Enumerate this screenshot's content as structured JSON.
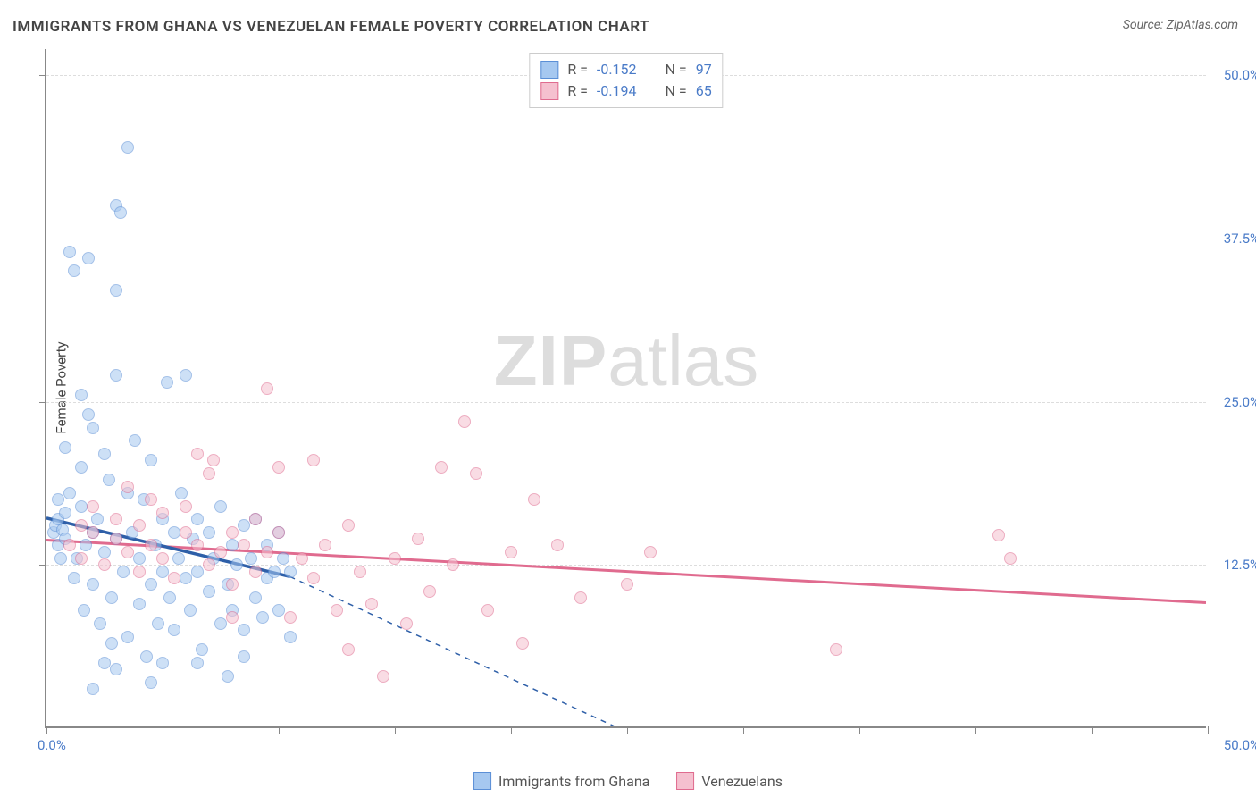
{
  "title": "IMMIGRANTS FROM GHANA VS VENEZUELAN FEMALE POVERTY CORRELATION CHART",
  "source": "Source: ZipAtlas.com",
  "y_axis_title": "Female Poverty",
  "watermark_zip": "ZIP",
  "watermark_atlas": "atlas",
  "chart": {
    "type": "scatter",
    "x_min": 0.0,
    "x_max": 50.0,
    "y_min": 0.0,
    "y_max": 52.0,
    "x_tick_step": 5.0,
    "y_gridlines": [
      12.5,
      25.0,
      37.5,
      50.0
    ],
    "y_tick_labels": [
      "12.5%",
      "25.0%",
      "37.5%",
      "50.0%"
    ],
    "x_label_min": "0.0%",
    "x_label_max": "50.0%",
    "background_color": "#ffffff",
    "grid_color": "#dddddd",
    "axis_color": "#888888",
    "label_color": "#4a7bc8",
    "point_radius": 7,
    "point_opacity": 0.55
  },
  "series": {
    "ghana": {
      "label": "Immigrants from Ghana",
      "fill_color": "#a6c8f0",
      "stroke_color": "#5b8fd6",
      "R": "-0.152",
      "N": "97",
      "trend": {
        "x1": 0,
        "y1": 16.0,
        "x2": 10.5,
        "y2": 11.5,
        "solid": true
      },
      "trend_ext": {
        "x1": 10.5,
        "y1": 11.5,
        "x2": 24.5,
        "y2": 0.0,
        "dashed": true
      },
      "points": [
        [
          0.3,
          15.0
        ],
        [
          0.4,
          15.5
        ],
        [
          0.5,
          14.0
        ],
        [
          0.5,
          16.0
        ],
        [
          0.6,
          13.0
        ],
        [
          0.7,
          15.2
        ],
        [
          0.8,
          14.5
        ],
        [
          0.8,
          16.5
        ],
        [
          1.0,
          36.5
        ],
        [
          1.2,
          35.0
        ],
        [
          1.3,
          13.0
        ],
        [
          1.5,
          17.0
        ],
        [
          1.5,
          20.0
        ],
        [
          1.6,
          9.0
        ],
        [
          1.7,
          14.0
        ],
        [
          1.8,
          24.0
        ],
        [
          2.0,
          23.0
        ],
        [
          2.0,
          11.0
        ],
        [
          2.0,
          15.0
        ],
        [
          2.2,
          16.0
        ],
        [
          2.3,
          8.0
        ],
        [
          2.5,
          21.0
        ],
        [
          2.5,
          13.5
        ],
        [
          2.7,
          19.0
        ],
        [
          2.8,
          10.0
        ],
        [
          3.0,
          27.0
        ],
        [
          3.0,
          14.5
        ],
        [
          3.0,
          40.0
        ],
        [
          3.2,
          39.5
        ],
        [
          3.3,
          12.0
        ],
        [
          3.5,
          7.0
        ],
        [
          3.5,
          18.0
        ],
        [
          3.7,
          15.0
        ],
        [
          3.8,
          22.0
        ],
        [
          3.5,
          44.5
        ],
        [
          4.0,
          9.5
        ],
        [
          4.0,
          13.0
        ],
        [
          4.2,
          17.5
        ],
        [
          4.3,
          5.5
        ],
        [
          4.5,
          11.0
        ],
        [
          4.5,
          20.5
        ],
        [
          4.7,
          14.0
        ],
        [
          4.8,
          8.0
        ],
        [
          5.0,
          16.0
        ],
        [
          5.0,
          12.0
        ],
        [
          5.2,
          26.5
        ],
        [
          5.3,
          10.0
        ],
        [
          5.5,
          15.0
        ],
        [
          5.5,
          7.5
        ],
        [
          5.7,
          13.0
        ],
        [
          5.8,
          18.0
        ],
        [
          6.0,
          11.5
        ],
        [
          6.0,
          27.0
        ],
        [
          6.2,
          9.0
        ],
        [
          6.3,
          14.5
        ],
        [
          6.5,
          16.0
        ],
        [
          6.5,
          12.0
        ],
        [
          6.7,
          6.0
        ],
        [
          7.0,
          15.0
        ],
        [
          7.0,
          10.5
        ],
        [
          7.2,
          13.0
        ],
        [
          7.5,
          8.0
        ],
        [
          7.5,
          17.0
        ],
        [
          7.8,
          11.0
        ],
        [
          8.0,
          14.0
        ],
        [
          8.0,
          9.0
        ],
        [
          8.2,
          12.5
        ],
        [
          8.5,
          15.5
        ],
        [
          8.5,
          7.5
        ],
        [
          8.8,
          13.0
        ],
        [
          9.0,
          10.0
        ],
        [
          9.0,
          16.0
        ],
        [
          9.3,
          8.5
        ],
        [
          9.5,
          14.0
        ],
        [
          9.5,
          11.5
        ],
        [
          9.8,
          12.0
        ],
        [
          10.0,
          9.0
        ],
        [
          10.0,
          15.0
        ],
        [
          10.2,
          13.0
        ],
        [
          10.5,
          7.0
        ],
        [
          10.5,
          12.0
        ],
        [
          3.0,
          33.5
        ],
        [
          1.8,
          36.0
        ],
        [
          4.5,
          3.5
        ],
        [
          3.0,
          4.5
        ],
        [
          2.0,
          3.0
        ],
        [
          2.5,
          5.0
        ],
        [
          6.5,
          5.0
        ],
        [
          7.8,
          4.0
        ],
        [
          8.5,
          5.5
        ],
        [
          0.8,
          21.5
        ],
        [
          1.5,
          25.5
        ],
        [
          1.0,
          18.0
        ],
        [
          0.5,
          17.5
        ],
        [
          1.2,
          11.5
        ],
        [
          2.8,
          6.5
        ],
        [
          5.0,
          5.0
        ]
      ]
    },
    "venezuela": {
      "label": "Venezuelans",
      "fill_color": "#f5c0cf",
      "stroke_color": "#e06b8f",
      "R": "-0.194",
      "N": "65",
      "trend": {
        "x1": 0,
        "y1": 14.3,
        "x2": 50,
        "y2": 9.5,
        "solid": true
      },
      "points": [
        [
          1.0,
          14.0
        ],
        [
          1.5,
          13.0
        ],
        [
          2.0,
          15.0
        ],
        [
          2.5,
          12.5
        ],
        [
          3.0,
          14.5
        ],
        [
          3.0,
          16.0
        ],
        [
          3.5,
          13.5
        ],
        [
          4.0,
          15.5
        ],
        [
          4.0,
          12.0
        ],
        [
          4.5,
          14.0
        ],
        [
          5.0,
          16.5
        ],
        [
          5.0,
          13.0
        ],
        [
          5.5,
          11.5
        ],
        [
          6.0,
          15.0
        ],
        [
          6.0,
          17.0
        ],
        [
          6.5,
          14.0
        ],
        [
          7.0,
          12.5
        ],
        [
          7.0,
          19.5
        ],
        [
          7.2,
          20.5
        ],
        [
          7.5,
          13.5
        ],
        [
          8.0,
          15.0
        ],
        [
          8.0,
          11.0
        ],
        [
          8.5,
          14.0
        ],
        [
          9.0,
          16.0
        ],
        [
          9.0,
          12.0
        ],
        [
          9.5,
          13.5
        ],
        [
          10.0,
          15.0
        ],
        [
          10.0,
          20.0
        ],
        [
          10.5,
          8.5
        ],
        [
          11.0,
          13.0
        ],
        [
          11.5,
          20.5
        ],
        [
          11.5,
          11.5
        ],
        [
          12.0,
          14.0
        ],
        [
          12.5,
          9.0
        ],
        [
          13.0,
          15.5
        ],
        [
          13.0,
          6.0
        ],
        [
          13.5,
          12.0
        ],
        [
          14.0,
          9.5
        ],
        [
          14.5,
          4.0
        ],
        [
          15.0,
          13.0
        ],
        [
          15.5,
          8.0
        ],
        [
          16.0,
          14.5
        ],
        [
          16.5,
          10.5
        ],
        [
          17.0,
          20.0
        ],
        [
          17.5,
          12.5
        ],
        [
          18.0,
          23.5
        ],
        [
          18.5,
          19.5
        ],
        [
          19.0,
          9.0
        ],
        [
          20.0,
          13.5
        ],
        [
          20.5,
          6.5
        ],
        [
          21.0,
          17.5
        ],
        [
          22.0,
          14.0
        ],
        [
          23.0,
          10.0
        ],
        [
          25.0,
          11.0
        ],
        [
          26.0,
          13.5
        ],
        [
          9.5,
          26.0
        ],
        [
          34.0,
          6.0
        ],
        [
          41.0,
          14.8
        ],
        [
          41.5,
          13.0
        ],
        [
          6.5,
          21.0
        ],
        [
          4.5,
          17.5
        ],
        [
          3.5,
          18.5
        ],
        [
          2.0,
          17.0
        ],
        [
          1.5,
          15.5
        ],
        [
          8.0,
          8.5
        ]
      ]
    }
  },
  "correlation_box": {
    "rows": [
      {
        "swatch_fill": "#a6c8f0",
        "swatch_stroke": "#5b8fd6",
        "R_label": "R =",
        "R_val": "-0.152",
        "N_label": "N =",
        "N_val": "97"
      },
      {
        "swatch_fill": "#f5c0cf",
        "swatch_stroke": "#e06b8f",
        "R_label": "R =",
        "R_val": "-0.194",
        "N_label": "N =",
        "N_val": "65"
      }
    ]
  }
}
